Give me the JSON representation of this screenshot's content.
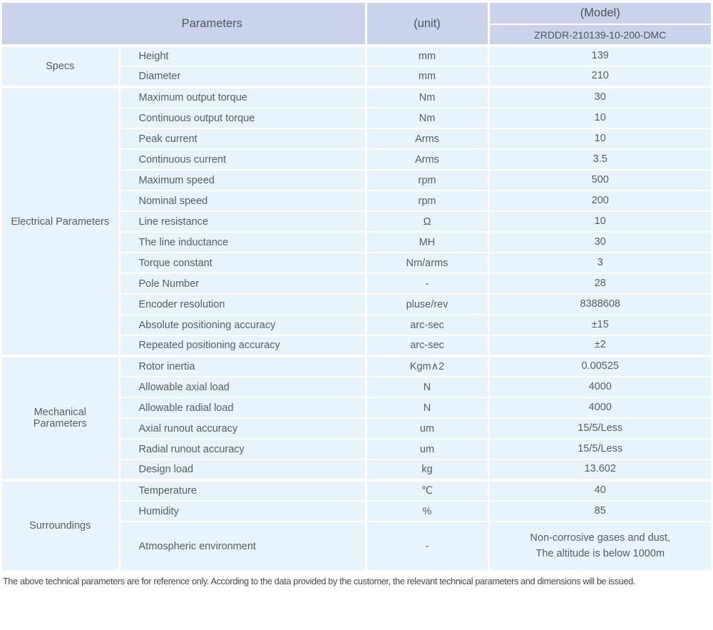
{
  "table": {
    "header": {
      "parameters_label": "Parameters",
      "unit_label": "(unit)",
      "model_label": "(Model)",
      "model_value": "ZRDDR-210139-10-200-DMC"
    },
    "sections": [
      {
        "name": "Specs",
        "rows": [
          [
            "Height",
            "mm",
            "139"
          ],
          [
            "Diameter",
            "mm",
            "210"
          ]
        ]
      },
      {
        "name": "Electrical Parameters",
        "rows": [
          [
            "Maximum output torque",
            "Nm",
            "30"
          ],
          [
            "Continuous output torque",
            "Nm",
            "10"
          ],
          [
            "Peak current",
            "Arms",
            "10"
          ],
          [
            "Continuous current",
            "Arms",
            "3.5"
          ],
          [
            "Maximum speed",
            "rpm",
            "500"
          ],
          [
            "Nominal speed",
            "rpm",
            "200"
          ],
          [
            "Line resistance",
            "Ω",
            "10"
          ],
          [
            "The line inductance",
            "MH",
            "30"
          ],
          [
            "Torque constant",
            "Nm/arms",
            "3"
          ],
          [
            "Pole Number",
            "-",
            "28"
          ],
          [
            "Encoder resolution",
            "pluse/rev",
            "8388608"
          ],
          [
            "Absolute positioning accuracy",
            "arc-sec",
            "±15"
          ],
          [
            "Repeated positioning accuracy",
            "arc-sec",
            "±2"
          ]
        ]
      },
      {
        "name": "Mechanical Parameters",
        "rows": [
          [
            "Rotor inertia",
            "Kgm∧2",
            "0.00525"
          ],
          [
            "Allowable axial load",
            "N",
            "4000"
          ],
          [
            "Allowable radial load",
            "N",
            "4000"
          ],
          [
            "Axial runout accuracy",
            "um",
            "15/5/Less"
          ],
          [
            "Radial runout accuracy",
            "um",
            "15/5/Less"
          ],
          [
            "Design load",
            "kg",
            "13.602"
          ]
        ]
      },
      {
        "name": "Surroundings",
        "tall_row": 2,
        "rows": [
          [
            "Temperature",
            "℃",
            "40"
          ],
          [
            "Humidity",
            "%",
            "85"
          ],
          [
            "Atmospheric environment",
            "-",
            "Non-corrosive gases and dust,\nThe altitude is below 1000m"
          ]
        ]
      }
    ],
    "footnote": "The above technical parameters are for reference only. According to the data provided by the customer, the relevant technical parameters and dimensions will be issued.",
    "colors": {
      "header_bg": "#cad3ea",
      "row_bg": "#e7f4fc",
      "separator": "#ffffff",
      "text": "#565c63"
    }
  }
}
